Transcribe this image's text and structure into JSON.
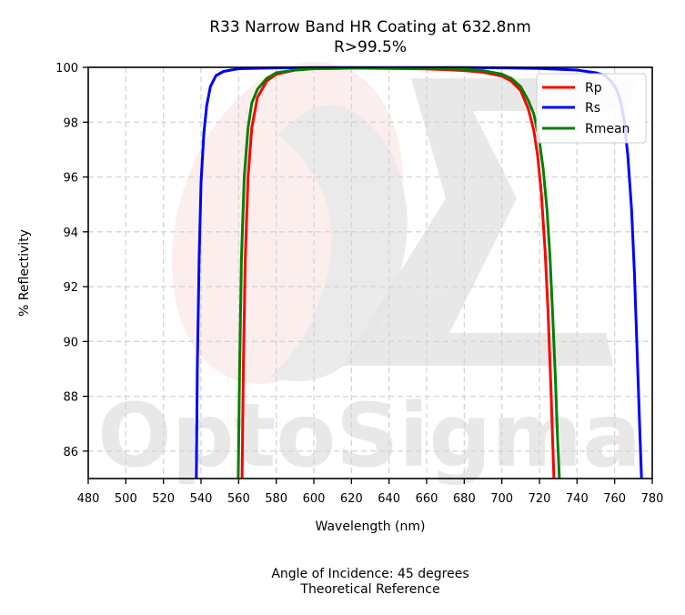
{
  "chart_data": {
    "type": "line",
    "title": "R33 Narrow Band HR Coating at 632.8nm",
    "subtitle": "R>99.5%",
    "xlabel": "Wavelength (nm)",
    "ylabel": "% Reflectivity",
    "xlim": [
      480,
      780
    ],
    "ylim": [
      85,
      100
    ],
    "xticks": [
      480,
      500,
      520,
      540,
      560,
      580,
      600,
      620,
      640,
      660,
      680,
      700,
      720,
      740,
      760,
      780
    ],
    "yticks": [
      86,
      88,
      90,
      92,
      94,
      96,
      98,
      100
    ],
    "grid": true,
    "legend_position": "top-right",
    "series": [
      {
        "name": "Rp",
        "color": "#ff0000",
        "x": [
          561.8,
          562.5,
          563.5,
          565,
          567,
          570,
          575,
          580,
          590,
          600,
          620,
          640,
          660,
          680,
          690,
          700,
          705,
          710,
          714,
          717,
          719,
          721,
          723,
          724.5,
          726,
          727,
          727.7
        ],
        "y": [
          85,
          89,
          93,
          96,
          97.8,
          98.9,
          99.5,
          99.75,
          99.9,
          99.95,
          99.97,
          99.96,
          99.94,
          99.88,
          99.82,
          99.68,
          99.5,
          99.15,
          98.5,
          97.7,
          96.8,
          95.4,
          93.3,
          91.2,
          88.5,
          86.4,
          85
        ]
      },
      {
        "name": "Rs",
        "color": "#0000ff",
        "x": [
          537.5,
          538,
          539,
          540,
          541.5,
          543,
          545,
          548,
          552,
          560,
          580,
          600,
          620,
          640,
          660,
          680,
          700,
          720,
          740,
          750,
          755,
          758,
          761,
          763,
          765,
          767,
          769,
          770.5,
          772,
          773.5,
          774.3
        ],
        "y": [
          85,
          89,
          93,
          95.8,
          97.6,
          98.6,
          99.3,
          99.7,
          99.85,
          99.95,
          99.98,
          99.99,
          99.99,
          99.99,
          99.99,
          99.99,
          99.98,
          99.96,
          99.9,
          99.8,
          99.7,
          99.5,
          99.2,
          98.8,
          98.1,
          96.8,
          94.8,
          92.5,
          89.5,
          86.5,
          85
        ]
      },
      {
        "name": "Rmean",
        "color": "#008000",
        "x": [
          559.8,
          560.5,
          561.5,
          563,
          565,
          567,
          570,
          575,
          580,
          590,
          600,
          620,
          640,
          660,
          680,
          690,
          700,
          705,
          710,
          714,
          717,
          720,
          722,
          724,
          725.5,
          727,
          728.5,
          729.5,
          730.6
        ],
        "y": [
          85,
          89,
          93,
          96,
          97.8,
          98.7,
          99.2,
          99.6,
          99.8,
          99.9,
          99.95,
          99.97,
          99.97,
          99.96,
          99.93,
          99.88,
          99.75,
          99.6,
          99.3,
          98.8,
          98.3,
          97.3,
          96.3,
          94.8,
          93.2,
          91,
          88.6,
          86.7,
          85
        ]
      }
    ]
  },
  "footer": {
    "line1": "Angle of Incidence: 45 degrees",
    "line2": "Theoretical Reference"
  },
  "watermark": {
    "text": "OptoSigma",
    "logo": "sigma-logo"
  }
}
